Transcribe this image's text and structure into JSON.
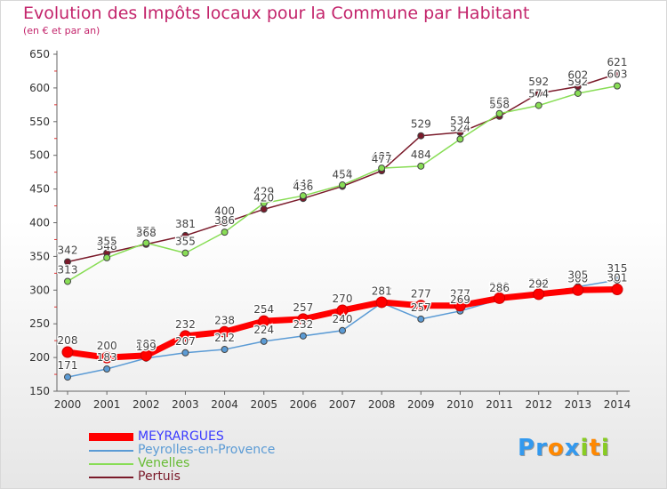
{
  "chart_data": {
    "type": "line",
    "title": "Evolution des Impôts locaux pour la Commune par Habitant",
    "subtitle": "(en € et par an)",
    "x": [
      "2000",
      "2001",
      "2002",
      "2003",
      "2004",
      "2005",
      "2006",
      "2007",
      "2008",
      "2009",
      "2010",
      "2011",
      "2012",
      "2013",
      "2014"
    ],
    "ylim": [
      150,
      650
    ],
    "yticks": [
      150,
      200,
      250,
      300,
      350,
      400,
      450,
      500,
      550,
      600,
      650
    ],
    "grid": false,
    "legend_position": "bottom-left",
    "series": [
      {
        "name": "MEYRARGUES",
        "color": "#ff0000",
        "text_color": "#3a3aff",
        "values": [
          208,
          200,
          203,
          232,
          238,
          254,
          257,
          270,
          282,
          277,
          277,
          288,
          294,
          300,
          301
        ]
      },
      {
        "name": "Peyrolles-en-Provence",
        "color": "#5b9bd5",
        "text_color": "#5b9bd5",
        "values": [
          171,
          183,
          199,
          207,
          212,
          224,
          232,
          240,
          281,
          257,
          269,
          286,
          292,
          305,
          315
        ]
      },
      {
        "name": "Venelles",
        "color": "#88dd55",
        "text_color": "#66bb33",
        "values": [
          313,
          348,
          370,
          355,
          386,
          429,
          440,
          456,
          481,
          484,
          524,
          562,
          574,
          592,
          603
        ]
      },
      {
        "name": "Pertuis",
        "color": "#7a1a2a",
        "text_color": "#7a1a2a",
        "values": [
          342,
          355,
          368,
          381,
          400,
          420,
          436,
          454,
          477,
          529,
          534,
          558,
          592,
          602,
          621
        ]
      }
    ]
  },
  "logo": {
    "letters": [
      {
        "ch": "P",
        "color": "#3399ee"
      },
      {
        "ch": "r",
        "color": "#3399ee"
      },
      {
        "ch": "o",
        "color": "#ff8800"
      },
      {
        "ch": "x",
        "color": "#3399ee"
      },
      {
        "ch": "i",
        "color": "#88cc22"
      },
      {
        "ch": "t",
        "color": "#ff8800"
      },
      {
        "ch": "i",
        "color": "#88cc22"
      }
    ]
  }
}
